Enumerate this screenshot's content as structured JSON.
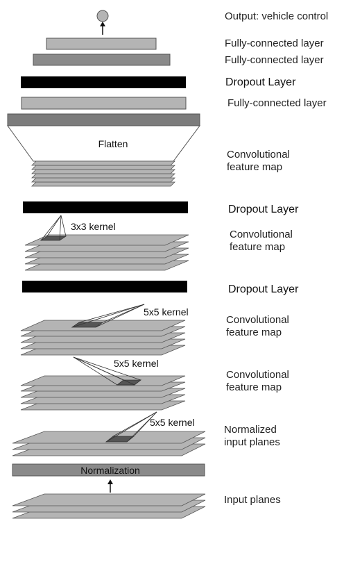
{
  "labels": {
    "output": "Output: vehicle control",
    "fc1": "Fully-connected layer",
    "fc2": "Fully-connected layer",
    "dropout1": "Dropout Layer",
    "fc3": "Fully-connected layer",
    "conv5_line1": "Convolutional",
    "conv5_line2": "feature map",
    "dropout2": "Dropout Layer",
    "conv4_line1": "Convolutional",
    "conv4_line2": "feature map",
    "dropout3": "Dropout Layer",
    "conv3_line1": "Convolutional",
    "conv3_line2": "feature map",
    "conv2_line1": "Convolutional",
    "conv2_line2": "feature map",
    "norm_line1": "Normalized",
    "norm_line2": "input planes",
    "input": "Input planes"
  },
  "inner": {
    "flatten": "Flatten",
    "normalization": "Normalization"
  },
  "kernels": {
    "k3x3": "3x3 kernel",
    "k5x5_a": "5x5 kernel",
    "k5x5_b": "5x5 kernel",
    "k5x5_c": "5x5 kernel"
  },
  "colors": {
    "light_gray": "#b4b4b4",
    "medium_gray": "#8a8a8a",
    "dark_gray": "#7c7c7c",
    "black": "#000000",
    "kernel_dark": "#555555"
  }
}
